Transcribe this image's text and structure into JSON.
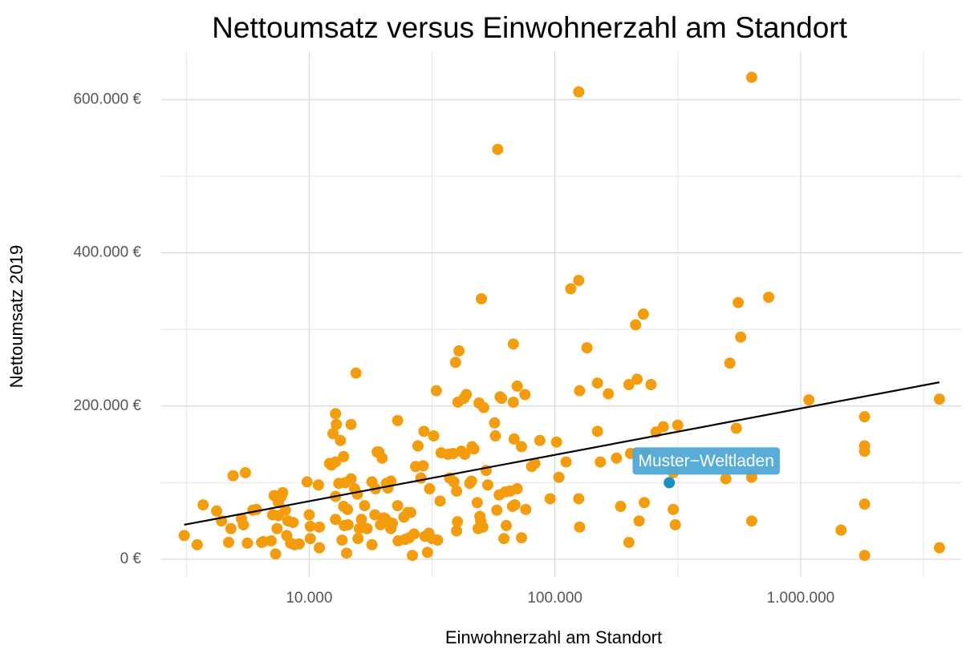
{
  "chart_data": {
    "type": "scatter",
    "title": "Nettoumsatz versus Einwohnerzahl am Standort",
    "x_label": "Einwohnerzahl am Standort",
    "y_label": "Nettoumsatz 2019",
    "xlog": true,
    "grid": true,
    "xlim": [
      2500,
      4500000
    ],
    "ylim": [
      -23000,
      662000
    ],
    "xticks": [
      {
        "value": 10000,
        "label": "10.000"
      },
      {
        "value": 100000,
        "label": "100.000"
      },
      {
        "value": 1000000,
        "label": "1.000.000"
      }
    ],
    "yticks": [
      {
        "value": 0,
        "label": "0 €"
      },
      {
        "value": 200000,
        "label": "200.000 €"
      },
      {
        "value": 400000,
        "label": "400.000 €"
      },
      {
        "value": 600000,
        "label": "600.000 €"
      }
    ],
    "series": [
      {
        "color": "#f39c0d",
        "x": [
          3100,
          3500,
          3700,
          4200,
          4400,
          4700,
          4800,
          4900,
          5300,
          5400,
          5500,
          5600,
          5900,
          6100,
          6400,
          6500,
          7000,
          7100,
          7200,
          7300,
          7400,
          7500,
          7500,
          7700,
          7800,
          8000,
          8100,
          8200,
          8400,
          8600,
          8700,
          9100,
          9800,
          10000,
          10100,
          10100,
          10900,
          11000,
          11000,
          12100,
          12300,
          12500,
          12800,
          12800,
          12800,
          12800,
          12900,
          13200,
          13400,
          13600,
          13800,
          13800,
          13900,
          14000,
          14200,
          14300,
          14400,
          14800,
          14800,
          15300,
          15500,
          15700,
          15800,
          16000,
          16300,
          16500,
          16800,
          17200,
          18000,
          18000,
          18500,
          18600,
          18900,
          19200,
          19500,
          19800,
          20100,
          20400,
          20600,
          20900,
          21200,
          21500,
          21500,
          21800,
          22900,
          22900,
          23000,
          24300,
          24600,
          25200,
          25500,
          25900,
          26300,
          26700,
          27100,
          27700,
          28500,
          29100,
          29300,
          29600,
          30300,
          30700,
          30900,
          31600,
          32100,
          32900,
          33300,
          34100,
          34400,
          36700,
          37300,
          38500,
          38800,
          39400,
          39800,
          39800,
          40100,
          40300,
          40700,
          41600,
          42600,
          43000,
          43600,
          45000,
          45700,
          46000,
          46800,
          48300,
          48700,
          49100,
          49500,
          49900,
          50200,
          50900,
          51300,
          52500,
          53300,
          56800,
          57200,
          58000,
          58500,
          59300,
          59800,
          60700,
          62000,
          62900,
          63400,
          65700,
          67200,
          67700,
          67700,
          68200,
          68700,
          70200,
          70200,
          73100,
          73100,
          75500,
          76100,
          80400,
          82900,
          86800,
          95600,
          101500,
          103800,
          111000,
          116000,
          125000,
          125000,
          125000,
          126000,
          126000,
          135000,
          149000,
          149000,
          153000,
          165000,
          178000,
          185000,
          200000,
          203000,
          220000,
          231000,
          232000,
          246000,
          258000,
          276000,
          200000,
          216000,
          213000,
          229000,
          303000,
          309000,
          316000,
          303000,
          496000,
          515000,
          547000,
          557000,
          570000,
          632000,
          632000,
          632000,
          741000,
          1080000,
          1460000,
          1820000,
          1820000,
          1820000,
          1820000,
          1820000,
          3670000,
          3670000
        ],
        "values": [
          31000,
          19000,
          71000,
          63000,
          50000,
          22000,
          40000,
          109000,
          53000,
          45000,
          113000,
          21000,
          64000,
          65000,
          22000,
          23000,
          24000,
          58000,
          83000,
          7000,
          40000,
          74000,
          57000,
          82000,
          87000,
          64000,
          31000,
          50000,
          21000,
          48000,
          19000,
          20000,
          101000,
          58000,
          43000,
          27000,
          97000,
          42000,
          15000,
          125000,
          123000,
          164000,
          127000,
          82000,
          52000,
          190000,
          176000,
          99000,
          155000,
          25000,
          134000,
          69000,
          44000,
          100000,
          8000,
          65000,
          45000,
          105000,
          176000,
          92000,
          243000,
          85000,
          27000,
          40000,
          52000,
          42000,
          70000,
          40000,
          19000,
          101000,
          58000,
          92000,
          140000,
          140000,
          45000,
          132000,
          54000,
          53000,
          99000,
          93000,
          48000,
          102000,
          40000,
          47000,
          181000,
          70000,
          24000,
          55000,
          26000,
          61000,
          28000,
          61000,
          5000,
          33000,
          121000,
          148000,
          106000,
          122000,
          167000,
          30000,
          9000,
          34000,
          92000,
          27000,
          161000,
          220000,
          25000,
          76000,
          139000,
          137000,
          106000,
          138000,
          101000,
          257000,
          89000,
          37000,
          49000,
          205000,
          272000,
          141000,
          210000,
          137000,
          215000,
          99000,
          102000,
          147000,
          144000,
          74000,
          40000,
          204000,
          56000,
          50000,
          340000,
          42000,
          198000,
          116000,
          97000,
          178000,
          161000,
          64000,
          535000,
          84000,
          212000,
          210000,
          27000,
          88000,
          44000,
          89000,
          69000,
          281000,
          205000,
          157000,
          71000,
          92000,
          226000,
          147000,
          28000,
          215000,
          65000,
          121000,
          125000,
          155000,
          79000,
          153000,
          107000,
          127000,
          353000,
          79000,
          610000,
          364000,
          42000,
          220000,
          276000,
          167000,
          230000,
          127000,
          216000,
          132000,
          69000,
          22000,
          138000,
          50000,
          74000,
          138000,
          228000,
          166000,
          173000,
          228000,
          235000,
          306000,
          320000,
          65000,
          45000,
          175000,
          113000,
          105000,
          256000,
          171000,
          335000,
          290000,
          629000,
          107000,
          50000,
          342000,
          208000,
          38000,
          186000,
          148000,
          141000,
          72000,
          5000,
          209000,
          15000
        ]
      },
      {
        "name": "Muster−Weltladen",
        "color": "#1b8fc4",
        "label_color": "#4ea8d6",
        "x": [
          292000
        ],
        "values": [
          100000
        ]
      }
    ],
    "trend": {
      "color": "#000000",
      "x": [
        3100,
        3670000
      ],
      "values": [
        45000,
        231000
      ]
    }
  }
}
